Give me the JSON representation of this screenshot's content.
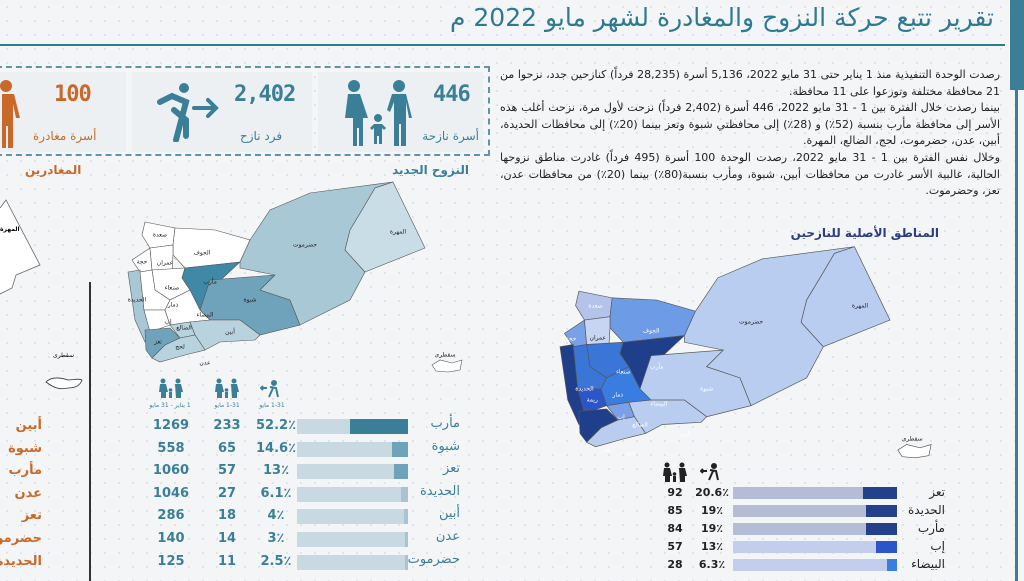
{
  "header": {
    "title": "تقرير تتبع حركة النزوح والمغادرة لشهر مايو 2022 م"
  },
  "stats": [
    {
      "value": "446",
      "label": "أسرة نازحة",
      "icon": "family-icon",
      "color": "#3a7f97"
    },
    {
      "value": "2,402",
      "label": "فرد نازح",
      "icon": "person-running-icon",
      "color": "#3a7f97"
    },
    {
      "value": "100",
      "label": "أسرة مغادرة",
      "icon": "person-icon",
      "color": "#c8692a"
    }
  ],
  "summary": [
    "رصدت الوحدة التنفيذية منذ 1 يناير حتى 31 مايو 2022، 5,136 أسرة (28,235 فرداً) كنازحين جدد، نزحوا من 21 محافظة مختلفة وتوزعوا على 11 محافظة.",
    "بينما رصدت خلال الفترة بين 1 - 31 مايو 2022، 446 أسرة (2,402 فرداً) نزحت لأول مرة، نزحت أغلب هذه الأسر إلى محافظة مأرب بنسبة (52٪) و (28٪) إلى محافظتي شبوة وتعز بينما (20٪) إلى محافظات الحديدة، أبين، عدن، حضرموت، لحج، الضالع، المهرة.",
    "وخلال نفس الفترة بين 1 - 31 مايو 2022، رصدت الوحدة 100 أسرة (495 فرداً) غادرت مناطق نزوحها الحالية، غالبية الأسر غادرت من محافظات أبين، شبوة، ومأرب بنسبة(80٪) بينما (20٪) من محافظات عدن، تعز، وحضرموت."
  ],
  "new_displacement": {
    "title": "النزوح الجديد",
    "map_labels": [
      "صعدة",
      "الجوف",
      "عمران",
      "حجة",
      "مأرب",
      "صنعاء",
      "الحديدة",
      "ذمار",
      "شبوة",
      "حضرموت",
      "المهرة",
      "البيضاء",
      "إب",
      "الضالع",
      "أبين",
      "تعز",
      "لحج",
      "عدن",
      "سقطرى"
    ],
    "headers": [
      "1 يناير - 31 مايو",
      "1-31 مايو",
      "1-31 مايو"
    ],
    "rows": [
      {
        "name": "مأرب",
        "total": "1269",
        "may": "233",
        "pct": 52.2,
        "pct_label": "52.2٪"
      },
      {
        "name": "شبوة",
        "total": "558",
        "may": "65",
        "pct": 14.6,
        "pct_label": "14.6٪"
      },
      {
        "name": "تعز",
        "total": "1060",
        "may": "57",
        "pct": 13,
        "pct_label": "13٪"
      },
      {
        "name": "الحديدة",
        "total": "1046",
        "may": "27",
        "pct": 6.1,
        "pct_label": "6.1٪"
      },
      {
        "name": "أبين",
        "total": "286",
        "may": "18",
        "pct": 4,
        "pct_label": "4٪"
      },
      {
        "name": "عدن",
        "total": "140",
        "may": "14",
        "pct": 3,
        "pct_label": "3٪"
      },
      {
        "name": "حضرموت",
        "total": "125",
        "may": "11",
        "pct": 2.5,
        "pct_label": "2.5٪"
      }
    ]
  },
  "leaving": {
    "title": "المغادرين",
    "map_labels": [
      "المهرة",
      "سقطرى"
    ],
    "rows": [
      "أبين",
      "شبوة",
      "مأرب",
      "عدن",
      "تعز",
      "حضرموت",
      "الحديدة"
    ]
  },
  "origin": {
    "title": "المناطق الأصلية للنازحين",
    "map_labels": [
      "صعدة",
      "الجوف",
      "حجة",
      "عمران",
      "مأرب",
      "صنعاء",
      "الحديدة",
      "ذمار",
      "ريمة",
      "شبوة",
      "حضرموت",
      "المهرة",
      "البيضاء",
      "إب",
      "الضالع",
      "أبين",
      "تعز",
      "لحج",
      "سقطرى"
    ],
    "rows": [
      {
        "name": "تعز",
        "count": "92",
        "pct": 20.6,
        "pct_label": "20.6٪",
        "color": "#22418a"
      },
      {
        "name": "الحديدة",
        "count": "85",
        "pct": 19,
        "pct_label": "19٪",
        "color": "#22418a"
      },
      {
        "name": "مأرب",
        "count": "84",
        "pct": 19,
        "pct_label": "19٪",
        "color": "#22418a"
      },
      {
        "name": "إب",
        "count": "57",
        "pct": 13,
        "pct_label": "13٪",
        "color": "#2b55c8"
      },
      {
        "name": "البيضاء",
        "count": "28",
        "pct": 6.3,
        "pct_label": "6.3٪",
        "color": "#3a7de0"
      }
    ]
  }
}
